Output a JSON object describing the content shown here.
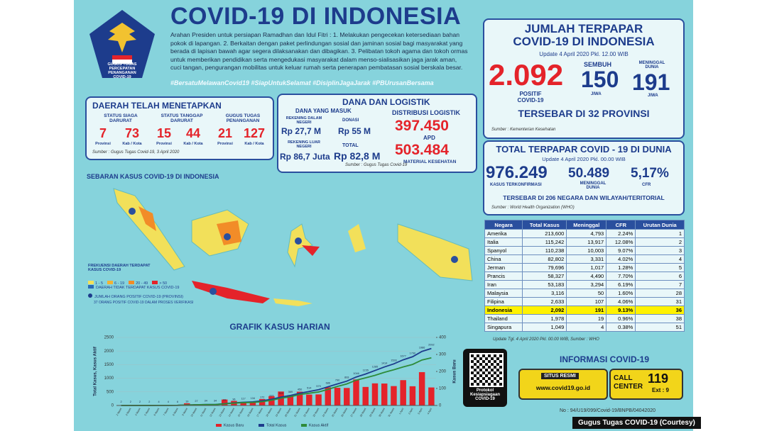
{
  "header": {
    "title": "COVID-19 DI INDONESIA",
    "logo_text": "GUGUS TUGAS PERCEPATAN PENANGANAN COVID-19",
    "paragraph": "Arahan Presiden untuk persiapan Ramadhan dan Idul Fitri : 1. Melakukan pengecekan ketersediaan bahan pokok di lapangan. 2. Berkaitan dengan paket perlindungan sosial dan jaminan sosial bagi masyarakat yang berada di lapisan bawah agar segera dilaksanakan dan dibagikan. 3. Pelibatan tokoh agama dan tokoh ormas untuk memberikan pendidikan serta mengedukasi masyarakat dalam menso-sialisasikan jaga jarak aman, cuci tangan, pengurangan mobilitas untuk keluar rumah serta penerapan pembatasan sosial berskala besar.",
    "hashtags": "#BersatuMelawanCovid19 #SiapUntukSelamat #DisiplinJagaJarak #PBUrusanBersama"
  },
  "daerah": {
    "title": "DAERAH TELAH MENETAPKAN",
    "groups": [
      {
        "label": "STATUS SIAGA DARURAT",
        "a": "7",
        "a_unit": "Provinsi",
        "b": "73",
        "b_unit": "Kab / Kota"
      },
      {
        "label": "STATUS TANGGAP DARURAT",
        "a": "15",
        "a_unit": "Provinsi",
        "b": "44",
        "b_unit": "Kab / Kota"
      },
      {
        "label": "GUGUS TUGAS PENANGANAN",
        "a": "21",
        "a_unit": "Provinsi",
        "b": "127",
        "b_unit": "Kab / Kota"
      }
    ],
    "source": "Sumber : Gugus Tugas Covid-19, 3 April 2020"
  },
  "dana": {
    "title": "DANA DAN LOGISTIK",
    "masuk_title": "DANA YANG MASUK",
    "dalam_label": "REKENING DALAM NEGERI",
    "dalam": "Rp 27,7 M",
    "donasi_label": "DONASI",
    "donasi": "Rp 55 M",
    "luar_label": "REKENING LUAR NEGERI",
    "luar": "Rp 86,7 Juta",
    "total_label": "TOTAL",
    "total": "Rp 82,8 M",
    "distribusi_title": "DISTRIBUSI LOGISTIK",
    "apd": "397.450",
    "apd_label": "APD",
    "material": "503.484",
    "material_label": "MATERIAL KESEHATAN",
    "source": "Sumber : Gugus Tugas Covid-19"
  },
  "indonesia": {
    "title": "JUMLAH TERPAPAR COVID-19 DI INDONESIA",
    "update": "Update 4 April 2020 Pkl. 12.00 WIB",
    "positif": "2.092",
    "positif_label": "POSITIF COVID-19",
    "sembuh_label": "SEMBUH",
    "sembuh": "150",
    "sembuh_unit": "JIWA",
    "meninggal_label": "MENINGGAL DUNIA",
    "meninggal": "191",
    "meninggal_unit": "JIWA",
    "tersebar": "TERSEBAR DI 32 PROVINSI",
    "source": "Sumber : Kementerian Kesehatan"
  },
  "dunia": {
    "title": "TOTAL TERPAPAR COVID - 19 DI DUNIA",
    "update": "Update 4 April 2020 Pkl. 00.00 WIB",
    "kasus": "976.249",
    "kasus_label": "KASUS TERKONFIRMASI",
    "meninggal": "50.489",
    "meninggal_label": "MENINGGAL DUNIA",
    "cfr": "5,17%",
    "cfr_label": "CFR",
    "tersebar": "TERSEBAR DI 206 NEGARA DAN WILAYAH/TERITORIAL",
    "source": "Sumber : World Health Organization (WHO)"
  },
  "table": {
    "header": [
      "Negara",
      "Total Kasus",
      "Meninggal",
      "CFR",
      "Urutan Dunia"
    ],
    "rows": [
      [
        "Amerika",
        "213,600",
        "4,793",
        "2.24%",
        "1"
      ],
      [
        "Italia",
        "115,242",
        "13,917",
        "12.08%",
        "2"
      ],
      [
        "Spanyol",
        "110,238",
        "10,003",
        "9.07%",
        "3"
      ],
      [
        "China",
        "82,802",
        "3,331",
        "4.02%",
        "4"
      ],
      [
        "Jerman",
        "79,696",
        "1,017",
        "1.28%",
        "5"
      ],
      [
        "Prancis",
        "58,327",
        "4,490",
        "7.70%",
        "6"
      ],
      [
        "Iran",
        "53,183",
        "3,294",
        "6.19%",
        "7"
      ],
      [
        "Malaysia",
        "3,116",
        "50",
        "1.60%",
        "28"
      ],
      [
        "Filipina",
        "2,633",
        "107",
        "4.06%",
        "31"
      ],
      [
        "Indonesia",
        "2,092",
        "191",
        "9.13%",
        "36"
      ],
      [
        "Thailand",
        "1,978",
        "19",
        "0.96%",
        "38"
      ],
      [
        "Singapura",
        "1,049",
        "4",
        "0.38%",
        "51"
      ]
    ],
    "highlight_row": 9,
    "note": "Update Tgl. 4 April 2020 Pkl. 00.00 WIB, Sumber : WHO"
  },
  "map": {
    "title": "SEBARAN KASUS COVID-19 DI INDONESIA",
    "legend_title": "FREKUENSI DAERAH TERDAPAT KASUS COVID-19",
    "ranges": [
      "1 - 5",
      "6 - 19",
      "20 - 49",
      "> 50"
    ],
    "no_case": "DAERAH TIDAK TERDAPAT KASUS COVID-19",
    "jumlah": "JUMLAH ORANG POSITIF COVID-19 (PROVINSI)",
    "verifikasi": "37 ORANG POSITIF COVID-19 DALAM PROSES VERIFIKASI"
  },
  "info": {
    "title": "INFORMASI COVID-19",
    "qr_label": "Protokol Kesiapsiagaan COVID-19",
    "situs_label": "SITUS RESMI",
    "situs": "www.covid19.go.id",
    "call": "CALL CENTER",
    "call_number": "119",
    "ext": "Ext : 9",
    "doc_no": "No : 94/U19/099/Covid-19/BNPB/04042020"
  },
  "credit": "Gugus Tugas COVID-19 (Courtesy)",
  "chart_data": {
    "type": "bar",
    "title": "GRAFIK KASUS HARIAN",
    "y_label": "Total Kasus, Kasus Aktif",
    "y2_label": "Kasus Baru",
    "categories": [
      "2 Maret",
      "3 Maret",
      "4 Maret",
      "5 Maret",
      "6 Maret",
      "7 Maret",
      "8 Maret",
      "9 Maret",
      "10 Maret",
      "11 Maret",
      "12 Maret",
      "13 Maret",
      "14 Maret",
      "15 Maret",
      "16 Maret",
      "17 Maret",
      "18 Maret",
      "19 Maret",
      "20 Maret",
      "21 Maret",
      "22 Maret",
      "23 Maret",
      "24 Maret",
      "25 Maret",
      "26 Maret",
      "27 Maret",
      "28 Maret",
      "29 Maret",
      "30 Maret",
      "31 Maret",
      "1 April",
      "2 April",
      "3 April",
      "4 April"
    ],
    "series": [
      {
        "name": "Kasus Baru",
        "color": "#e4232a",
        "type": "bar",
        "axis": "y2",
        "values": [
          2,
          0,
          0,
          0,
          2,
          0,
          2,
          13,
          8,
          7,
          0,
          35,
          27,
          21,
          17,
          38,
          55,
          82,
          60,
          81,
          64,
          65,
          107,
          104,
          103,
          153,
          109,
          130,
          129,
          114,
          149,
          113,
          196,
          106
        ]
      },
      {
        "name": "Total Kasus",
        "color": "#1d3c8c",
        "type": "line",
        "values": [
          2,
          2,
          2,
          2,
          4,
          4,
          6,
          19,
          27,
          34,
          34,
          69,
          96,
          117,
          134,
          172,
          227,
          309,
          369,
          450,
          514,
          579,
          686,
          790,
          893,
          1046,
          1155,
          1285,
          1414,
          1528,
          1677,
          1790,
          1986,
          2092
        ]
      },
      {
        "name": "Kasus Aktif",
        "color": "#2e8b3a",
        "type": "line",
        "values": [
          2,
          2,
          2,
          2,
          4,
          4,
          6,
          17,
          25,
          31,
          31,
          61,
          86,
          102,
          112,
          141,
          192,
          268,
          318,
          405,
          451,
          496,
          593,
          701,
          791,
          929,
          1016,
          1107,
          1217,
          1311,
          1417,
          1508,
          1671,
          1751
        ]
      }
    ],
    "ylim": [
      0,
      2500
    ],
    "yticks": [
      0,
      500,
      1000,
      1500,
      2000,
      2500
    ],
    "y2lim": [
      0,
      400
    ],
    "y2ticks": [
      0,
      100,
      200,
      300,
      400
    ]
  }
}
